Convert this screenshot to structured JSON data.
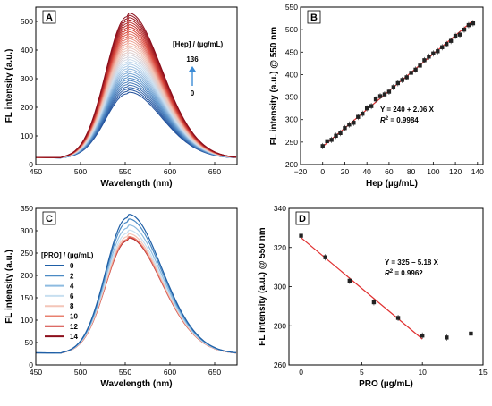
{
  "chart_data": [
    {
      "panel": "A",
      "type": "line",
      "xlabel": "Wavelength (nm)",
      "ylabel": "FL intensity (a.u.)",
      "xlim": [
        450,
        675
      ],
      "ylim": [
        0,
        550
      ],
      "xticks": [
        450,
        500,
        550,
        600,
        650
      ],
      "yticks": [
        0,
        100,
        200,
        300,
        400,
        500
      ],
      "annotation_title": "[Hep] / (µg/mL)",
      "annotation_top": "136",
      "annotation_bottom": "0",
      "peak_x": 552,
      "curve_count": 35,
      "peak_min": 245,
      "peak_max": 512,
      "baseline": 22,
      "color_low": "#1f4e9a",
      "color_high": "#8b0d1a"
    },
    {
      "panel": "B",
      "type": "scatter",
      "xlabel": "Hep (µg/mL)",
      "ylabel": "FL intensity (a.u.) @ 550 nm",
      "xlim": [
        -20,
        145
      ],
      "ylim": [
        200,
        550
      ],
      "xticks": [
        -20,
        0,
        20,
        40,
        60,
        80,
        100,
        120,
        140
      ],
      "yticks": [
        200,
        250,
        300,
        350,
        400,
        450,
        500,
        550
      ],
      "equation": "Y = 240 + 2.06 X",
      "r2_label": "R",
      "r2_value": "= 0.9984",
      "fit": {
        "intercept": 240,
        "slope": 2.06,
        "x_range": [
          0,
          136
        ]
      },
      "x": [
        0,
        4,
        8,
        12,
        16,
        20,
        24,
        28,
        32,
        36,
        40,
        44,
        48,
        52,
        56,
        60,
        64,
        68,
        72,
        76,
        80,
        84,
        88,
        92,
        96,
        100,
        104,
        108,
        112,
        116,
        120,
        124,
        128,
        132,
        136
      ],
      "y": [
        241,
        252,
        255,
        264,
        270,
        281,
        289,
        293,
        306,
        313,
        325,
        330,
        345,
        352,
        356,
        362,
        372,
        381,
        388,
        394,
        404,
        411,
        420,
        432,
        440,
        447,
        452,
        461,
        468,
        475,
        486,
        489,
        500,
        510,
        514
      ],
      "marker_color": "#222222",
      "line_color": "#e03030"
    },
    {
      "panel": "C",
      "type": "line",
      "xlabel": "Wavelength (nm)",
      "ylabel": "FL intensity (a.u.)",
      "xlim": [
        450,
        675
      ],
      "ylim": [
        0,
        350
      ],
      "xticks": [
        450,
        500,
        550,
        600,
        650
      ],
      "yticks": [
        0,
        50,
        100,
        150,
        200,
        250,
        300,
        350
      ],
      "legend_title": "[PRO] / (µg/mL)",
      "peak_x": 552,
      "baseline": 25,
      "series": [
        {
          "name": "0",
          "peak": 326,
          "color": "#1f5fa6"
        },
        {
          "name": "2",
          "peak": 316,
          "color": "#4b8ac4"
        },
        {
          "name": "4",
          "peak": 303,
          "color": "#8dbbe0"
        },
        {
          "name": "6",
          "peak": 292,
          "color": "#c7dff0"
        },
        {
          "name": "8",
          "peak": 284,
          "color": "#f4c5b8"
        },
        {
          "name": "10",
          "peak": 278,
          "color": "#e8806f"
        },
        {
          "name": "12",
          "peak": 276,
          "color": "#d03a34"
        },
        {
          "name": "14",
          "peak": 275,
          "color": "#8b0d1a"
        }
      ]
    },
    {
      "panel": "D",
      "type": "scatter",
      "xlabel": "PRO (µg/mL)",
      "ylabel": "FL intensity (a.u.) @ 550 nm",
      "xlim": [
        -1,
        15
      ],
      "ylim": [
        260,
        340
      ],
      "xticks": [
        0,
        5,
        10,
        15
      ],
      "yticks": [
        260,
        280,
        300,
        320,
        340
      ],
      "equation": "Y = 325 − 5.18 X",
      "r2_label": "R",
      "r2_value": "= 0.9962",
      "fit": {
        "intercept": 325,
        "slope": -5.18,
        "x_range": [
          0,
          10
        ]
      },
      "x": [
        0,
        2,
        4,
        6,
        8,
        10,
        12,
        14
      ],
      "y": [
        326,
        315,
        303,
        292,
        284,
        275,
        274,
        276
      ],
      "marker_color": "#222222",
      "line_color": "#e03030"
    }
  ]
}
